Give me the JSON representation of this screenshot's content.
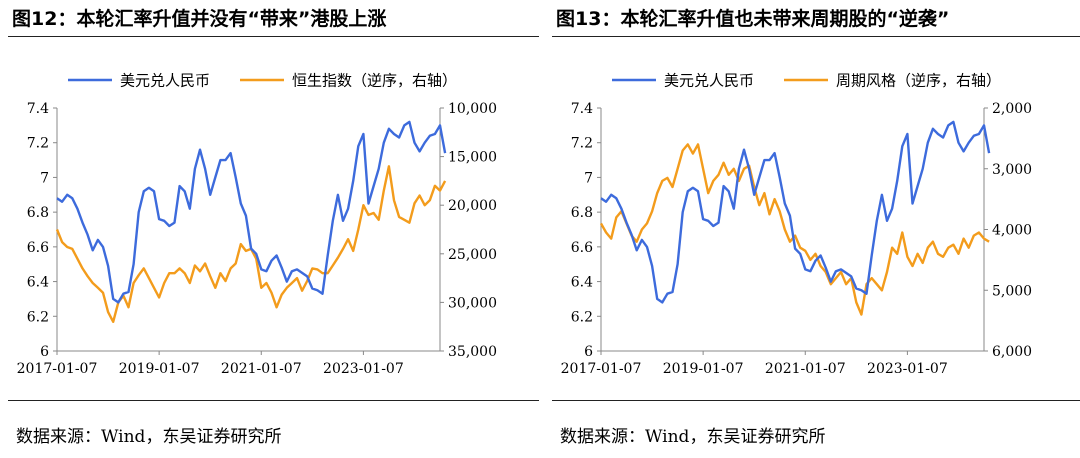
{
  "colors": {
    "usd_cny": "#3D6BDC",
    "right_series": "#F39C1C",
    "axis": "#888888"
  },
  "left": {
    "title": "图12：本轮汇率升值并没有“带来”港股上涨",
    "source": "数据来源：Wind，东吴证券研究所"
  },
  "right": {
    "title": "图13：本轮汇率升值也未带来周期股的“逆袭”",
    "source": "数据来源：Wind，东吴证券研究所"
  },
  "chart_data": [
    {
      "type": "line",
      "title": "本轮汇率升值并没有“带来”港股上涨",
      "x_ticks": [
        "2017-01-07",
        "2019-01-07",
        "2021-01-07",
        "2023-01-07"
      ],
      "x_range": [
        "2017-01",
        "2024-07"
      ],
      "y_left": {
        "ticks": [
          "6",
          "6.2",
          "6.4",
          "6.6",
          "6.8",
          "7",
          "7.2",
          "7.4"
        ],
        "range": [
          6,
          7.4
        ]
      },
      "y_right": {
        "ticks": [
          "10,000",
          "15,000",
          "20,000",
          "25,000",
          "30,000",
          "35,000"
        ],
        "range": [
          10000,
          35000
        ],
        "reversed": true
      },
      "legend_placement": "top",
      "series": [
        {
          "name": "美元兑人民币",
          "axis": "left",
          "color": "#3D6BDC",
          "x": [
            2017.0,
            2017.1,
            2017.2,
            2017.3,
            2017.4,
            2017.5,
            2017.6,
            2017.7,
            2017.8,
            2017.9,
            2018.0,
            2018.1,
            2018.2,
            2018.3,
            2018.4,
            2018.5,
            2018.6,
            2018.7,
            2018.8,
            2018.9,
            2019.0,
            2019.1,
            2019.2,
            2019.3,
            2019.4,
            2019.5,
            2019.6,
            2019.7,
            2019.8,
            2019.9,
            2020.0,
            2020.1,
            2020.2,
            2020.3,
            2020.4,
            2020.5,
            2020.6,
            2020.7,
            2020.8,
            2020.9,
            2021.0,
            2021.1,
            2021.2,
            2021.3,
            2021.4,
            2021.5,
            2021.6,
            2021.7,
            2021.8,
            2021.9,
            2022.0,
            2022.1,
            2022.2,
            2022.3,
            2022.4,
            2022.5,
            2022.6,
            2022.7,
            2022.8,
            2022.9,
            2023.0,
            2023.1,
            2023.2,
            2023.3,
            2023.4,
            2023.5,
            2023.6,
            2023.7,
            2023.8,
            2023.9,
            2024.0,
            2024.1,
            2024.2,
            2024.3,
            2024.4,
            2024.5,
            2024.6
          ],
          "values": [
            6.88,
            6.86,
            6.9,
            6.88,
            6.82,
            6.74,
            6.67,
            6.58,
            6.64,
            6.6,
            6.49,
            6.3,
            6.28,
            6.33,
            6.34,
            6.5,
            6.8,
            6.92,
            6.94,
            6.92,
            6.76,
            6.75,
            6.72,
            6.74,
            6.95,
            6.92,
            6.82,
            7.05,
            7.16,
            7.05,
            6.9,
            7.0,
            7.1,
            7.1,
            7.14,
            7.0,
            6.85,
            6.78,
            6.59,
            6.56,
            6.47,
            6.46,
            6.52,
            6.55,
            6.48,
            6.4,
            6.46,
            6.47,
            6.45,
            6.43,
            6.36,
            6.35,
            6.33,
            6.55,
            6.75,
            6.9,
            6.75,
            6.82,
            6.98,
            7.18,
            7.25,
            6.85,
            6.95,
            7.05,
            7.2,
            7.28,
            7.25,
            7.23,
            7.3,
            7.32,
            7.2,
            7.15,
            7.2,
            7.24,
            7.25,
            7.3,
            7.14
          ]
        },
        {
          "name": "恒生指数（逆序，右轴）",
          "axis": "right",
          "color": "#F39C1C",
          "x": [
            2017.0,
            2017.1,
            2017.2,
            2017.3,
            2017.4,
            2017.5,
            2017.6,
            2017.7,
            2017.8,
            2017.9,
            2018.0,
            2018.1,
            2018.2,
            2018.3,
            2018.4,
            2018.5,
            2018.6,
            2018.7,
            2018.8,
            2018.9,
            2019.0,
            2019.1,
            2019.2,
            2019.3,
            2019.4,
            2019.5,
            2019.6,
            2019.7,
            2019.8,
            2019.9,
            2020.0,
            2020.1,
            2020.2,
            2020.3,
            2020.4,
            2020.5,
            2020.6,
            2020.7,
            2020.8,
            2020.9,
            2021.0,
            2021.1,
            2021.2,
            2021.3,
            2021.4,
            2021.5,
            2021.6,
            2021.7,
            2021.8,
            2021.9,
            2022.0,
            2022.1,
            2022.2,
            2022.3,
            2022.4,
            2022.5,
            2022.6,
            2022.7,
            2022.8,
            2022.9,
            2023.0,
            2023.1,
            2023.2,
            2023.3,
            2023.4,
            2023.5,
            2023.6,
            2023.7,
            2023.8,
            2023.9,
            2024.0,
            2024.1,
            2024.2,
            2024.3,
            2024.4,
            2024.5,
            2024.6
          ],
          "values": [
            22500,
            23800,
            24300,
            24500,
            25500,
            26500,
            27300,
            28000,
            28500,
            29000,
            31000,
            32000,
            30000,
            29300,
            30500,
            28000,
            27200,
            26500,
            27500,
            28500,
            29500,
            28000,
            27000,
            27000,
            26500,
            27000,
            28000,
            26200,
            26800,
            26000,
            27300,
            28500,
            27000,
            27800,
            26500,
            26000,
            24000,
            24700,
            24500,
            25500,
            28500,
            28000,
            29000,
            30500,
            29200,
            28500,
            28000,
            27500,
            28800,
            27800,
            26500,
            26600,
            27000,
            27000,
            26200,
            25400,
            24500,
            23500,
            24700,
            22500,
            20000,
            21000,
            20800,
            21500,
            18500,
            16000,
            19500,
            21200,
            21500,
            21800,
            19800,
            19000,
            20000,
            19500,
            18000,
            18500,
            17500
          ]
        }
      ]
    },
    {
      "type": "line",
      "title": "本轮汇率升值也未带来周期股的“逆袭”",
      "x_ticks": [
        "2017-01-07",
        "2019-01-07",
        "2021-01-07",
        "2023-01-07"
      ],
      "x_range": [
        "2017-01",
        "2024-07"
      ],
      "y_left": {
        "ticks": [
          "6",
          "6.2",
          "6.4",
          "6.6",
          "6.8",
          "7",
          "7.2",
          "7.4"
        ],
        "range": [
          6,
          7.4
        ]
      },
      "y_right": {
        "ticks": [
          "2,000",
          "3,000",
          "4,000",
          "5,000",
          "6,000"
        ],
        "range": [
          2000,
          6000
        ],
        "reversed": true
      },
      "legend_placement": "top",
      "series": [
        {
          "name": "美元兑人民币",
          "axis": "left",
          "color": "#3D6BDC",
          "x": [
            2017.0,
            2017.1,
            2017.2,
            2017.3,
            2017.4,
            2017.5,
            2017.6,
            2017.7,
            2017.8,
            2017.9,
            2018.0,
            2018.1,
            2018.2,
            2018.3,
            2018.4,
            2018.5,
            2018.6,
            2018.7,
            2018.8,
            2018.9,
            2019.0,
            2019.1,
            2019.2,
            2019.3,
            2019.4,
            2019.5,
            2019.6,
            2019.7,
            2019.8,
            2019.9,
            2020.0,
            2020.1,
            2020.2,
            2020.3,
            2020.4,
            2020.5,
            2020.6,
            2020.7,
            2020.8,
            2020.9,
            2021.0,
            2021.1,
            2021.2,
            2021.3,
            2021.4,
            2021.5,
            2021.6,
            2021.7,
            2021.8,
            2021.9,
            2022.0,
            2022.1,
            2022.2,
            2022.3,
            2022.4,
            2022.5,
            2022.6,
            2022.7,
            2022.8,
            2022.9,
            2023.0,
            2023.1,
            2023.2,
            2023.3,
            2023.4,
            2023.5,
            2023.6,
            2023.7,
            2023.8,
            2023.9,
            2024.0,
            2024.1,
            2024.2,
            2024.3,
            2024.4,
            2024.5,
            2024.6
          ],
          "values": [
            6.88,
            6.86,
            6.9,
            6.88,
            6.82,
            6.74,
            6.67,
            6.58,
            6.64,
            6.6,
            6.49,
            6.3,
            6.28,
            6.33,
            6.34,
            6.5,
            6.8,
            6.92,
            6.94,
            6.92,
            6.76,
            6.75,
            6.72,
            6.74,
            6.95,
            6.92,
            6.82,
            7.05,
            7.16,
            7.05,
            6.9,
            7.0,
            7.1,
            7.1,
            7.14,
            7.0,
            6.85,
            6.78,
            6.59,
            6.56,
            6.47,
            6.46,
            6.52,
            6.55,
            6.48,
            6.4,
            6.46,
            6.47,
            6.45,
            6.43,
            6.36,
            6.35,
            6.33,
            6.55,
            6.75,
            6.9,
            6.75,
            6.82,
            6.98,
            7.18,
            7.25,
            6.85,
            6.95,
            7.05,
            7.2,
            7.28,
            7.25,
            7.23,
            7.3,
            7.32,
            7.2,
            7.15,
            7.2,
            7.24,
            7.25,
            7.3,
            7.14
          ]
        },
        {
          "name": "周期风格（逆序，右轴）",
          "axis": "right",
          "color": "#F39C1C",
          "x": [
            2017.0,
            2017.1,
            2017.2,
            2017.3,
            2017.4,
            2017.5,
            2017.6,
            2017.7,
            2017.8,
            2017.9,
            2018.0,
            2018.1,
            2018.2,
            2018.3,
            2018.4,
            2018.5,
            2018.6,
            2018.7,
            2018.8,
            2018.9,
            2019.0,
            2019.1,
            2019.2,
            2019.3,
            2019.4,
            2019.5,
            2019.6,
            2019.7,
            2019.8,
            2019.9,
            2020.0,
            2020.1,
            2020.2,
            2020.3,
            2020.4,
            2020.5,
            2020.6,
            2020.7,
            2020.8,
            2020.9,
            2021.0,
            2021.1,
            2021.2,
            2021.3,
            2021.4,
            2021.5,
            2021.6,
            2021.7,
            2021.8,
            2021.9,
            2022.0,
            2022.1,
            2022.2,
            2022.3,
            2022.4,
            2022.5,
            2022.6,
            2022.7,
            2022.8,
            2022.9,
            2023.0,
            2023.1,
            2023.2,
            2023.3,
            2023.4,
            2023.5,
            2023.6,
            2023.7,
            2023.8,
            2023.9,
            2024.0,
            2024.1,
            2024.2,
            2024.3,
            2024.4,
            2024.5,
            2024.6
          ],
          "values": [
            3900,
            4050,
            4150,
            3800,
            3700,
            3900,
            4100,
            4200,
            4000,
            3900,
            3700,
            3400,
            3200,
            3150,
            3300,
            3000,
            2700,
            2600,
            2750,
            2600,
            3000,
            3400,
            3200,
            3100,
            2900,
            3100,
            3000,
            3200,
            3000,
            2950,
            3300,
            3600,
            3400,
            3750,
            3500,
            3700,
            4000,
            4200,
            4100,
            4300,
            4350,
            4500,
            4400,
            4600,
            4700,
            4900,
            4800,
            4700,
            4900,
            4800,
            5200,
            5400,
            4900,
            4800,
            4900,
            5000,
            4700,
            4300,
            4400,
            4050,
            4450,
            4600,
            4400,
            4550,
            4300,
            4200,
            4400,
            4450,
            4300,
            4250,
            4400,
            4150,
            4300,
            4100,
            4050,
            4150,
            4200
          ]
        }
      ]
    }
  ]
}
